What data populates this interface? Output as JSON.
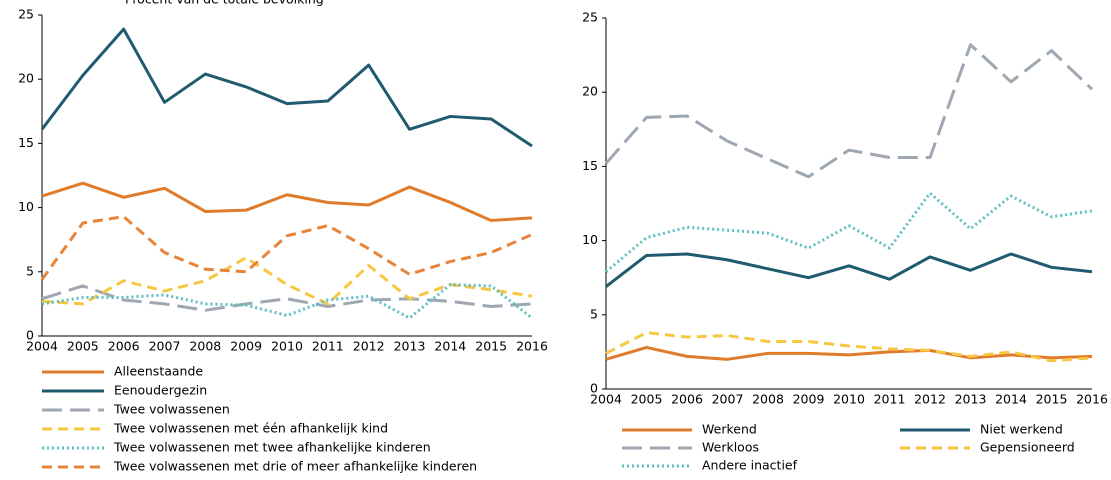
{
  "chart_data": [
    {
      "type": "line",
      "title": "Procent van de totale bevolking",
      "categories": [
        "2004",
        "2005",
        "2006",
        "2007",
        "2008",
        "2009",
        "2010",
        "2011",
        "2012",
        "2013",
        "2014",
        "2015",
        "2016"
      ],
      "ylim": [
        0,
        25
      ],
      "yticks": [
        0,
        5,
        10,
        15,
        20,
        25
      ],
      "grid": false,
      "legend": "bottom",
      "series": [
        {
          "name": "Alleenstaande",
          "color": "#e07b2a",
          "line_style": "solid",
          "values": [
            10.9,
            11.9,
            10.8,
            11.5,
            9.7,
            9.8,
            11.0,
            10.4,
            10.2,
            11.6,
            10.4,
            9.0,
            9.2
          ]
        },
        {
          "name": "Eenoudergezin",
          "color": "#1f5a6e",
          "line_style": "solid",
          "values": [
            16.1,
            20.3,
            23.9,
            18.2,
            20.4,
            19.4,
            18.1,
            18.3,
            21.1,
            16.1,
            17.1,
            16.9,
            14.8
          ]
        },
        {
          "name": "Twee volwassenen",
          "color": "#9ea7b2",
          "line_style": "long-dashed",
          "values": [
            2.9,
            3.9,
            2.8,
            2.5,
            2.0,
            2.5,
            2.9,
            2.3,
            2.8,
            2.9,
            2.7,
            2.3,
            2.5
          ]
        },
        {
          "name": "Twee volwassenen met één afhankelijk kind",
          "color": "#f7c744",
          "line_style": "dashed",
          "values": [
            2.7,
            2.5,
            4.3,
            3.5,
            4.3,
            6.1,
            4.0,
            2.5,
            5.5,
            2.9,
            4.0,
            3.6,
            3.1
          ]
        },
        {
          "name": "Twee volwassenen met twee afhankelijke kinderen",
          "color": "#5bbfc4",
          "line_style": "dotted",
          "values": [
            2.5,
            3.0,
            3.0,
            3.2,
            2.5,
            2.4,
            1.6,
            2.8,
            3.1,
            1.4,
            4.0,
            3.9,
            1.4
          ]
        },
        {
          "name": "Twee volwassenen met drie of meer afhankelijke kinderen",
          "color": "#e8843a",
          "line_style": "dashed",
          "values": [
            4.4,
            8.8,
            9.3,
            6.5,
            5.2,
            5.0,
            7.8,
            8.6,
            6.8,
            4.8,
            5.8,
            6.5,
            7.9
          ]
        }
      ]
    },
    {
      "type": "line",
      "categories": [
        "2004",
        "2005",
        "2006",
        "2007",
        "2008",
        "2009",
        "2010",
        "2011",
        "2012",
        "2013",
        "2014",
        "2015",
        "2016"
      ],
      "ylim": [
        0,
        25
      ],
      "yticks": [
        0,
        5,
        10,
        15,
        20,
        25
      ],
      "grid": false,
      "legend": "bottom",
      "series": [
        {
          "name": "Werkend",
          "color": "#e07b2a",
          "line_style": "solid",
          "values": [
            2.0,
            2.8,
            2.2,
            2.0,
            2.4,
            2.4,
            2.3,
            2.5,
            2.6,
            2.1,
            2.3,
            2.1,
            2.2
          ]
        },
        {
          "name": "Niet werkend",
          "color": "#1f5a6e",
          "line_style": "solid",
          "values": [
            6.9,
            9.0,
            9.1,
            8.7,
            8.1,
            7.5,
            8.3,
            7.4,
            8.9,
            8.0,
            9.1,
            8.2,
            7.9
          ]
        },
        {
          "name": "Werkloos",
          "color": "#9ea7b2",
          "line_style": "long-dashed",
          "values": [
            15.2,
            18.3,
            18.4,
            16.7,
            15.5,
            14.3,
            16.1,
            15.6,
            15.6,
            23.2,
            20.7,
            22.8,
            20.2
          ]
        },
        {
          "name": "Gepensioneerd",
          "color": "#f7c744",
          "line_style": "dashed",
          "values": [
            2.4,
            3.8,
            3.5,
            3.6,
            3.2,
            3.2,
            2.9,
            2.7,
            2.6,
            2.2,
            2.5,
            1.9,
            2.1
          ]
        },
        {
          "name": "Andere inactief",
          "color": "#5bbfc4",
          "line_style": "dotted",
          "values": [
            7.9,
            10.2,
            10.9,
            10.7,
            10.5,
            9.5,
            11.0,
            9.5,
            13.2,
            10.8,
            13.0,
            11.6,
            12.0
          ]
        }
      ]
    }
  ]
}
